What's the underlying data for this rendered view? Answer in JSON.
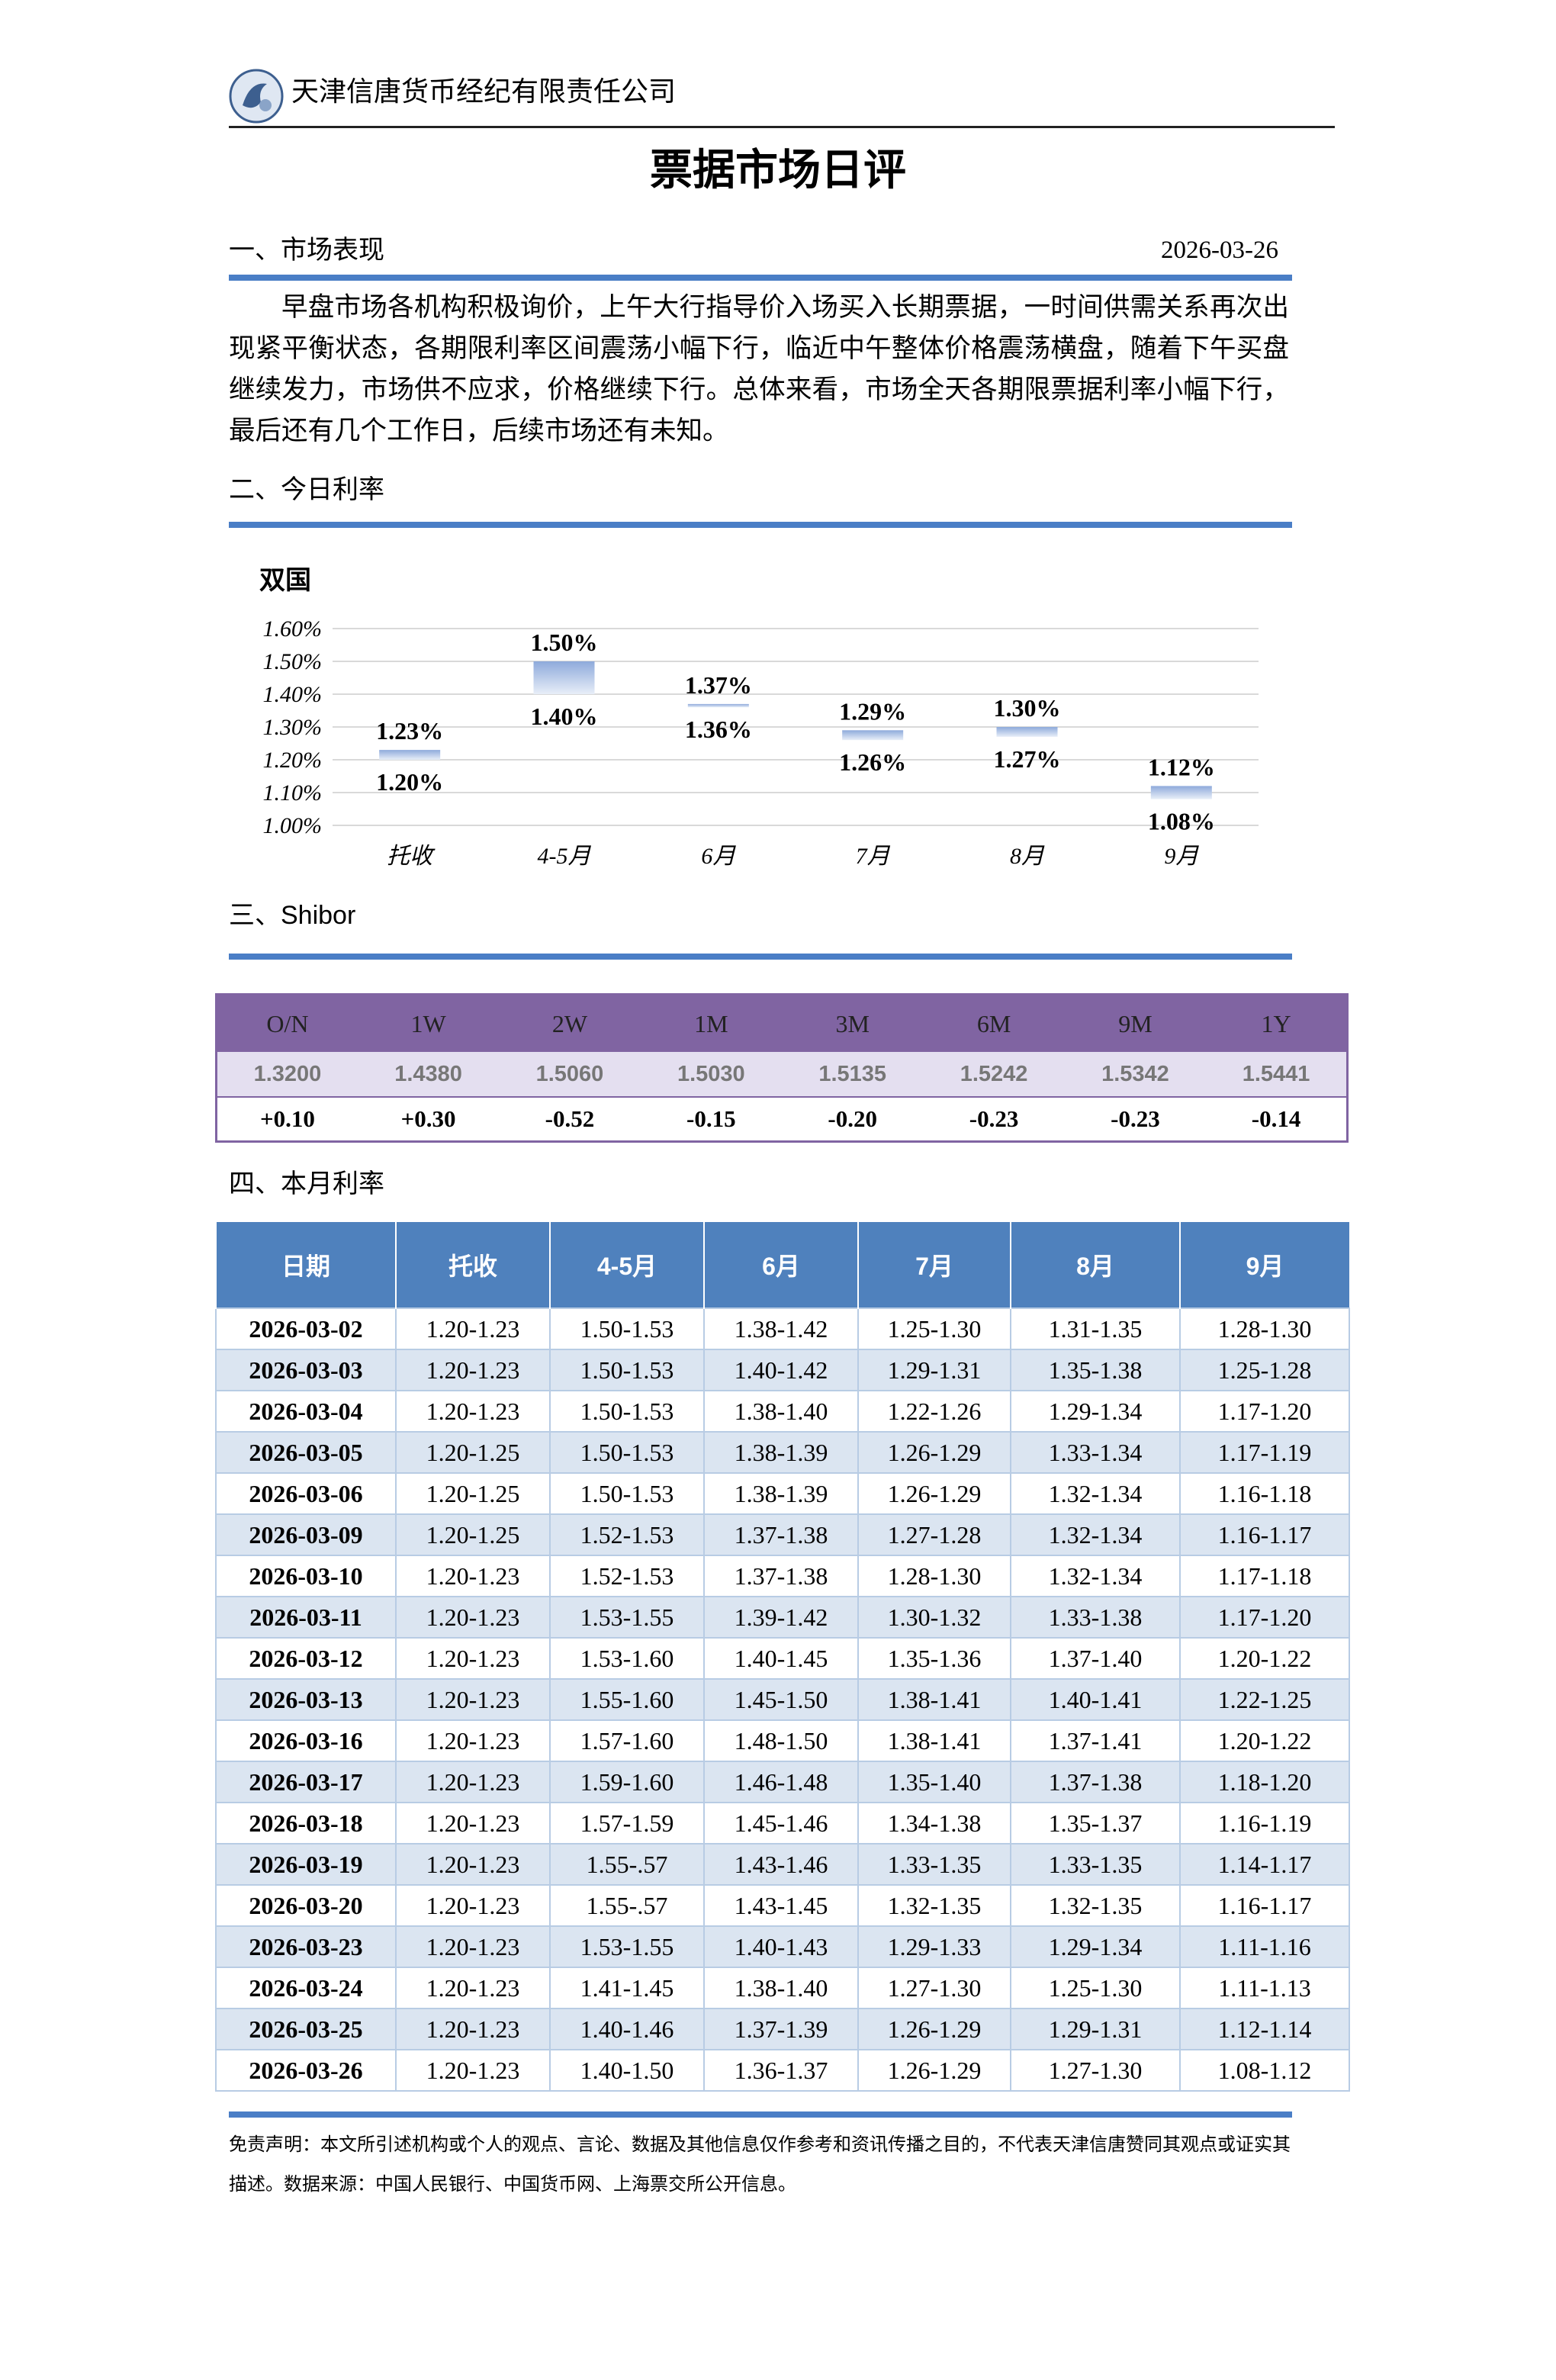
{
  "header": {
    "company": "天津信唐货币经纪有限责任公司"
  },
  "title": "票据市场日评",
  "section1": {
    "heading": "一、市场表现",
    "date": "2026-03-26",
    "text": "早盘市场各机构积极询价，上午大行指导价入场买入长期票据，一时间供需关系再次出现紧平衡状态，各期限利率区间震荡小幅下行，临近中午整体价格震荡横盘，随着下午买盘继续发力，市场供不应求，价格继续下行。总体来看，市场全天各期限票据利率小幅下行，最后还有几个工作日，后续市场还有未知。"
  },
  "section2": {
    "heading": "二、今日利率",
    "chart_data": {
      "type": "range_bar",
      "title": "双国",
      "categories": [
        "托收",
        "4-5月",
        "6月",
        "7月",
        "8月",
        "9月"
      ],
      "low": [
        1.2,
        1.4,
        1.36,
        1.26,
        1.27,
        1.08
      ],
      "low_labels": [
        "1.20%",
        "1.40%",
        "1.36%",
        "1.26%",
        "1.27%",
        "1.08%"
      ],
      "high": [
        1.23,
        1.5,
        1.37,
        1.29,
        1.3,
        1.12
      ],
      "high_labels": [
        "1.23%",
        "1.50%",
        "1.37%",
        "1.29%",
        "1.30%",
        "1.12%"
      ],
      "color": "#8eaadb",
      "ylim": [
        1.0,
        1.6
      ],
      "yticks": [
        {
          "value": 1.0,
          "label": "1.00%"
        },
        {
          "value": 1.1,
          "label": "1.10%"
        },
        {
          "value": 1.2,
          "label": "1.20%"
        },
        {
          "value": 1.3,
          "label": "1.30%"
        },
        {
          "value": 1.4,
          "label": "1.40%"
        },
        {
          "value": 1.5,
          "label": "1.50%"
        },
        {
          "value": 1.6,
          "label": "1.60%"
        }
      ],
      "grid": true
    }
  },
  "section3": {
    "heading": "三、Shibor",
    "table": {
      "header": [
        "O/N",
        "1W",
        "2W",
        "1M",
        "3M",
        "6M",
        "9M",
        "1Y"
      ],
      "rates": [
        "1.3200",
        "1.4380",
        "1.5060",
        "1.5030",
        "1.5135",
        "1.5242",
        "1.5342",
        "1.5441"
      ],
      "changes": [
        "+0.10",
        "+0.30",
        "-0.52",
        "-0.15",
        "-0.20",
        "-0.23",
        "-0.23",
        "-0.14"
      ]
    }
  },
  "section4": {
    "heading": "四、本月利率",
    "table": {
      "header": [
        "日期",
        "托收",
        "4-5月",
        "6月",
        "7月",
        "8月",
        "9月"
      ],
      "rows": [
        [
          "2026-03-02",
          "1.20-1.23",
          "1.50-1.53",
          "1.38-1.42",
          "1.25-1.30",
          "1.31-1.35",
          "1.28-1.30"
        ],
        [
          "2026-03-03",
          "1.20-1.23",
          "1.50-1.53",
          "1.40-1.42",
          "1.29-1.31",
          "1.35-1.38",
          "1.25-1.28"
        ],
        [
          "2026-03-04",
          "1.20-1.23",
          "1.50-1.53",
          "1.38-1.40",
          "1.22-1.26",
          "1.29-1.34",
          "1.17-1.20"
        ],
        [
          "2026-03-05",
          "1.20-1.25",
          "1.50-1.53",
          "1.38-1.39",
          "1.26-1.29",
          "1.33-1.34",
          "1.17-1.19"
        ],
        [
          "2026-03-06",
          "1.20-1.25",
          "1.50-1.53",
          "1.38-1.39",
          "1.26-1.29",
          "1.32-1.34",
          "1.16-1.18"
        ],
        [
          "2026-03-09",
          "1.20-1.25",
          "1.52-1.53",
          "1.37-1.38",
          "1.27-1.28",
          "1.32-1.34",
          "1.16-1.17"
        ],
        [
          "2026-03-10",
          "1.20-1.23",
          "1.52-1.53",
          "1.37-1.38",
          "1.28-1.30",
          "1.32-1.34",
          "1.17-1.18"
        ],
        [
          "2026-03-11",
          "1.20-1.23",
          "1.53-1.55",
          "1.39-1.42",
          "1.30-1.32",
          "1.33-1.38",
          "1.17-1.20"
        ],
        [
          "2026-03-12",
          "1.20-1.23",
          "1.53-1.60",
          "1.40-1.45",
          "1.35-1.36",
          "1.37-1.40",
          "1.20-1.22"
        ],
        [
          "2026-03-13",
          "1.20-1.23",
          "1.55-1.60",
          "1.45-1.50",
          "1.38-1.41",
          "1.40-1.41",
          "1.22-1.25"
        ],
        [
          "2026-03-16",
          "1.20-1.23",
          "1.57-1.60",
          "1.48-1.50",
          "1.38-1.41",
          "1.37-1.41",
          "1.20-1.22"
        ],
        [
          "2026-03-17",
          "1.20-1.23",
          "1.59-1.60",
          "1.46-1.48",
          "1.35-1.40",
          "1.37-1.38",
          "1.18-1.20"
        ],
        [
          "2026-03-18",
          "1.20-1.23",
          "1.57-1.59",
          "1.45-1.46",
          "1.34-1.38",
          "1.35-1.37",
          "1.16-1.19"
        ],
        [
          "2026-03-19",
          "1.20-1.23",
          "1.55-.57",
          "1.43-1.46",
          "1.33-1.35",
          "1.33-1.35",
          "1.14-1.17"
        ],
        [
          "2026-03-20",
          "1.20-1.23",
          "1.55-.57",
          "1.43-1.45",
          "1.32-1.35",
          "1.32-1.35",
          "1.16-1.17"
        ],
        [
          "2026-03-23",
          "1.20-1.23",
          "1.53-1.55",
          "1.40-1.43",
          "1.29-1.33",
          "1.29-1.34",
          "1.11-1.16"
        ],
        [
          "2026-03-24",
          "1.20-1.23",
          "1.41-1.45",
          "1.38-1.40",
          "1.27-1.30",
          "1.25-1.30",
          "1.11-1.13"
        ],
        [
          "2026-03-25",
          "1.20-1.23",
          "1.40-1.46",
          "1.37-1.39",
          "1.26-1.29",
          "1.29-1.31",
          "1.12-1.14"
        ],
        [
          "2026-03-26",
          "1.20-1.23",
          "1.40-1.50",
          "1.36-1.37",
          "1.26-1.29",
          "1.27-1.30",
          "1.08-1.12"
        ]
      ]
    }
  },
  "footer": {
    "disclaimer": "免责声明：本文所引述机构或个人的观点、言论、数据及其他信息仅作参考和资讯传播之目的，不代表天津信唐赞同其观点或证实其描述。数据来源：中国人民银行、中国货币网、上海票交所公开信息。"
  }
}
